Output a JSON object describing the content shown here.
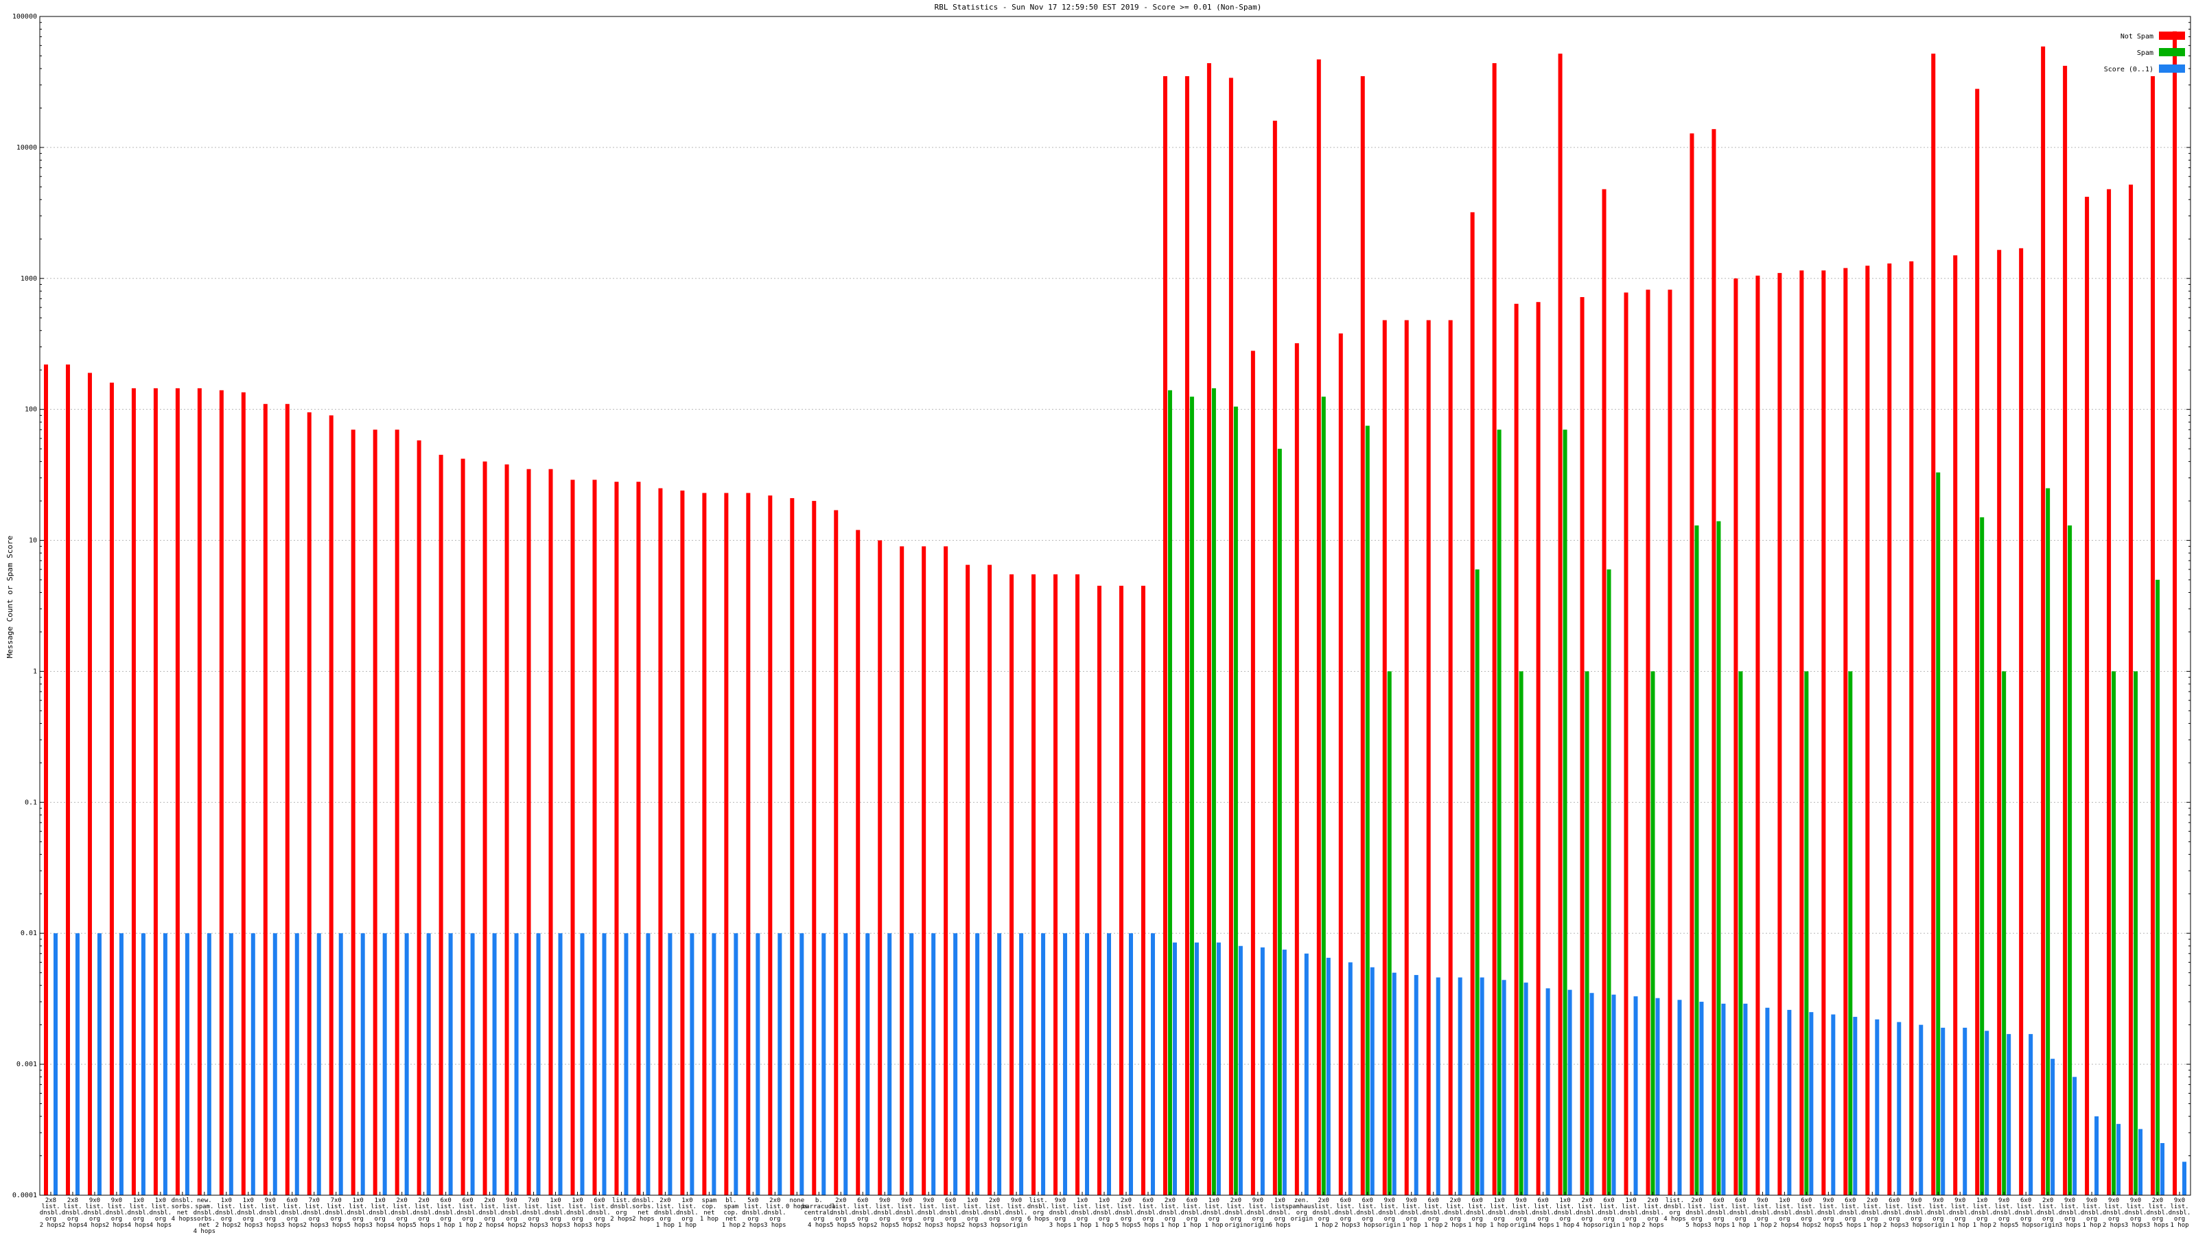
{
  "chart_data": {
    "type": "bar",
    "title": "RBL Statistics - Sun Nov 17 12:59:50 EST 2019 - Score >= 0.01 (Non-Spam)",
    "ylabel": "Message Count or Spam Score",
    "xlabel": "",
    "yscale": "log",
    "ylim": [
      0.0001,
      100000
    ],
    "yticks": [
      "100000",
      "10000",
      "1000",
      "100",
      "10",
      "1",
      "0.1",
      "0.01",
      "0.001",
      "0.0001"
    ],
    "grid": true,
    "legend_position": "top-right",
    "series": [
      {
        "name": "Not Spam",
        "color": "#ff0000"
      },
      {
        "name": "Spam",
        "color": "#00b000"
      },
      {
        "name": "Score (0..1)",
        "color": "#1e7ff0"
      }
    ],
    "not_spam": [
      220,
      220,
      190,
      160,
      145,
      145,
      145,
      145,
      140,
      135,
      110,
      110,
      95,
      90,
      70,
      70,
      70,
      58,
      45,
      42,
      40,
      38,
      35,
      35,
      29,
      29,
      28,
      28,
      25,
      24,
      23,
      23,
      23,
      22,
      21,
      20,
      17,
      12,
      10,
      9,
      9,
      9,
      6.5,
      6.5,
      5.5,
      5.5,
      5.5,
      5.5,
      4.5,
      4.5,
      4.5,
      35000,
      35000,
      44000,
      34000,
      280,
      16000,
      320,
      47000,
      380,
      35000,
      480,
      480,
      480,
      480,
      3200,
      44000,
      640,
      660,
      52000,
      720,
      4800,
      780,
      820,
      820,
      12800,
      13800,
      1000,
      1050,
      1100,
      1150,
      1150,
      1200,
      1250,
      1300,
      1350,
      52000,
      1500,
      28000,
      1650,
      1700,
      59000,
      42000,
      4200,
      4800,
      5200,
      35000,
      77000
    ],
    "spam": [
      null,
      null,
      null,
      null,
      null,
      null,
      null,
      null,
      null,
      null,
      null,
      null,
      null,
      null,
      null,
      null,
      null,
      null,
      null,
      null,
      null,
      null,
      null,
      null,
      null,
      null,
      null,
      null,
      null,
      null,
      null,
      null,
      null,
      null,
      null,
      null,
      null,
      null,
      null,
      null,
      null,
      null,
      null,
      null,
      null,
      null,
      null,
      null,
      null,
      null,
      null,
      140,
      125,
      145,
      105,
      null,
      50,
      null,
      125,
      null,
      75,
      1,
      null,
      null,
      null,
      6,
      70,
      1,
      null,
      70,
      1,
      6,
      null,
      1,
      null,
      13,
      14,
      1,
      null,
      null,
      1,
      null,
      1,
      null,
      null,
      null,
      33,
      null,
      15,
      1,
      null,
      25,
      13,
      null,
      1,
      1,
      5,
      null
    ],
    "score": [
      0.01,
      0.01,
      0.01,
      0.01,
      0.01,
      0.01,
      0.01,
      0.01,
      0.01,
      0.01,
      0.01,
      0.01,
      0.01,
      0.01,
      0.01,
      0.01,
      0.01,
      0.01,
      0.01,
      0.01,
      0.01,
      0.01,
      0.01,
      0.01,
      0.01,
      0.01,
      0.01,
      0.01,
      0.01,
      0.01,
      0.01,
      0.01,
      0.01,
      0.01,
      0.01,
      0.01,
      0.01,
      0.01,
      0.01,
      0.01,
      0.01,
      0.01,
      0.01,
      0.01,
      0.01,
      0.01,
      0.01,
      0.01,
      0.01,
      0.01,
      0.01,
      0.0085,
      0.0085,
      0.0085,
      0.008,
      0.0078,
      0.0075,
      0.007,
      0.0065,
      0.006,
      0.0055,
      0.005,
      0.0048,
      0.0046,
      0.0046,
      0.0046,
      0.0044,
      0.0042,
      0.0038,
      0.0037,
      0.0035,
      0.0034,
      0.0033,
      0.0032,
      0.0031,
      0.003,
      0.0029,
      0.0029,
      0.0027,
      0.0026,
      0.0025,
      0.0024,
      0.0023,
      0.0022,
      0.0021,
      0.002,
      0.0019,
      0.0019,
      0.0018,
      0.0017,
      0.0017,
      0.0011,
      0.0008,
      0.0004,
      0.00035,
      0.00032,
      0.00025,
      0.00018
    ],
    "categories": [
      [
        "2x8",
        "list.",
        "dnsbl.",
        "org",
        "2 hops"
      ],
      [
        "2x8",
        "list.",
        "dnsbl.",
        "org",
        "2 hops"
      ],
      [
        "9x0",
        "list.",
        "dnsbl.",
        "org",
        "4 hops"
      ],
      [
        "9x0",
        "list.",
        "dnsbl.",
        "org",
        "2 hops"
      ],
      [
        "1x0",
        "list.",
        "dnsbl.",
        "org",
        "4 hops"
      ],
      [
        "1x0",
        "list.",
        "dnsbl.",
        "org",
        "4 hops"
      ],
      [
        "dnsbl.",
        "sorbs.",
        "net",
        "4 hops"
      ],
      [
        "new.",
        "spam.",
        "dnsbl.",
        "sorbs.",
        "net",
        "4 hops"
      ],
      [
        "1x0",
        "list.",
        "dnsbl.",
        "org",
        "2 hops"
      ],
      [
        "1x0",
        "list.",
        "dnsbl.",
        "org",
        "2 hops"
      ],
      [
        "9x0",
        "list.",
        "dnsbl.",
        "org",
        "3 hops"
      ],
      [
        "6x0",
        "list.",
        "dnsbl.",
        "org",
        "3 hops"
      ],
      [
        "7x0",
        "list.",
        "dnsbl.",
        "org",
        "2 hops"
      ],
      [
        "7x0",
        "list.",
        "dnsbl.",
        "org",
        "3 hops"
      ],
      [
        "1x0",
        "list.",
        "dnsbl.",
        "org",
        "5 hops"
      ],
      [
        "1x0",
        "list.",
        "dnsbl.",
        "org",
        "3 hops"
      ],
      [
        "2x0",
        "list.",
        "dnsbl.",
        "org",
        "4 hops"
      ],
      [
        "2x0",
        "list.",
        "dnsbl.",
        "org",
        "5 hops"
      ],
      [
        "6x0",
        "list.",
        "dnsbl.",
        "org",
        "1 hop"
      ],
      [
        "6x0",
        "list.",
        "dnsbl.",
        "org",
        "1 hop"
      ],
      [
        "2x0",
        "list.",
        "dnsbl.",
        "org",
        "2 hops"
      ],
      [
        "9x0",
        "list.",
        "dnsbl.",
        "org",
        "4 hops"
      ],
      [
        "7x0",
        "list.",
        "dnsbl.",
        "org",
        "2 hops"
      ],
      [
        "1x0",
        "list.",
        "dnsbl.",
        "org",
        "3 hops"
      ],
      [
        "1x0",
        "list.",
        "dnsbl.",
        "org",
        "3 hops"
      ],
      [
        "6x0",
        "list.",
        "dnsbl.",
        "org",
        "3 hops"
      ],
      [
        "list.",
        "dnsbl.",
        "org",
        "2 hops"
      ],
      [
        "dnsbl.",
        "sorbs.",
        "net",
        "2 hops"
      ],
      [
        "2x0",
        "list.",
        "dnsbl.",
        "org",
        "1 hop"
      ],
      [
        "1x0",
        "list.",
        "dnsbl.",
        "org",
        "1 hop"
      ],
      [
        "spam",
        "cop.",
        "net",
        "1 hop"
      ],
      [
        "bl.",
        "spam",
        "cop.",
        "net",
        "1 hop"
      ],
      [
        "5x0",
        "list.",
        "dnsbl.",
        "org",
        "2 hops"
      ],
      [
        "2x0",
        "list.",
        "dnsbl.",
        "org",
        "3 hops"
      ],
      [
        "none",
        "0 hops"
      ],
      [
        "b.",
        "barracuda",
        "central.",
        "org",
        "4 hops"
      ],
      [
        "2x0",
        "list.",
        "dnsbl.",
        "org",
        "5 hops"
      ],
      [
        "6x0",
        "list.",
        "dnsbl.",
        "org",
        "5 hops"
      ],
      [
        "9x0",
        "list.",
        "dnsbl.",
        "org",
        "2 hops"
      ],
      [
        "9x0",
        "list.",
        "dnsbl.",
        "org",
        "5 hops"
      ],
      [
        "9x0",
        "list.",
        "dnsbl.",
        "org",
        "2 hops"
      ],
      [
        "6x0",
        "list.",
        "dnsbl.",
        "org",
        "3 hops"
      ],
      [
        "1x0",
        "list.",
        "dnsbl.",
        "org",
        "2 hops"
      ],
      [
        "2x0",
        "list.",
        "dnsbl.",
        "org",
        "3 hops"
      ],
      [
        "9x0",
        "list.",
        "dnsbl.",
        "org",
        "origin"
      ],
      [
        "list.",
        "dnsbl.",
        "org",
        "6 hops"
      ],
      [
        "9x0",
        "list.",
        "dnsbl.",
        "org",
        "3 hops"
      ],
      [
        "1x0",
        "list.",
        "dnsbl.",
        "org",
        "1 hop"
      ],
      [
        "1x0",
        "list.",
        "dnsbl.",
        "org",
        "1 hop"
      ],
      [
        "2x0",
        "list.",
        "dnsbl.",
        "org",
        "5 hops"
      ],
      [
        "6x0",
        "list.",
        "dnsbl.",
        "org",
        "5 hops"
      ],
      [
        "2x0",
        "list.",
        "dnsbl.",
        "org",
        "1 hop"
      ],
      [
        "6x0",
        "list.",
        "dnsbl.",
        "org",
        "1 hop"
      ],
      [
        "1x0",
        "list.",
        "dnsbl.",
        "org",
        "1 hop"
      ],
      [
        "2x0",
        "list.",
        "dnsbl.",
        "org",
        "origin"
      ],
      [
        "9x0",
        "list.",
        "dnsbl.",
        "org",
        "origin"
      ],
      [
        "1x0",
        "list.",
        "dnsbl.",
        "org",
        "6 hops"
      ],
      [
        "zen.",
        "spamhaus.",
        "org",
        "origin"
      ],
      [
        "2x0",
        "list.",
        "dnsbl.",
        "org",
        "1 hop"
      ],
      [
        "6x0",
        "list.",
        "dnsbl.",
        "org",
        "2 hops"
      ],
      [
        "6x0",
        "list.",
        "dnsbl.",
        "org",
        "3 hops"
      ],
      [
        "9x0",
        "list.",
        "dnsbl.",
        "org",
        "origin"
      ],
      [
        "9x0",
        "list.",
        "dnsbl.",
        "org",
        "1 hop"
      ],
      [
        "6x0",
        "list.",
        "dnsbl.",
        "org",
        "1 hop"
      ],
      [
        "2x0",
        "list.",
        "dnsbl.",
        "org",
        "2 hops"
      ],
      [
        "6x0",
        "list.",
        "dnsbl.",
        "org",
        "1 hop"
      ],
      [
        "1x0",
        "list.",
        "dnsbl.",
        "org",
        "1 hop"
      ],
      [
        "9x0",
        "list.",
        "dnsbl.",
        "org",
        "origin"
      ],
      [
        "6x0",
        "list.",
        "dnsbl.",
        "org",
        "4 hops"
      ],
      [
        "1x0",
        "list.",
        "dnsbl.",
        "org",
        "1 hop"
      ],
      [
        "2x0",
        "list.",
        "dnsbl.",
        "org",
        "4 hops"
      ],
      [
        "6x0",
        "list.",
        "dnsbl.",
        "org",
        "origin"
      ],
      [
        "1x0",
        "list.",
        "dnsbl.",
        "org",
        "1 hop"
      ],
      [
        "2x0",
        "list.",
        "dnsbl.",
        "org",
        "2 hops"
      ],
      [
        "list.",
        "dnsbl.",
        "org",
        "4 hops"
      ],
      [
        "2x0",
        "list.",
        "dnsbl.",
        "org",
        "5 hops"
      ],
      [
        "6x0",
        "list.",
        "dnsbl.",
        "org",
        "3 hops"
      ],
      [
        "6x0",
        "list.",
        "dnsbl.",
        "org",
        "1 hop"
      ],
      [
        "9x0",
        "list.",
        "dnsbl.",
        "org",
        "1 hop"
      ],
      [
        "1x0",
        "list.",
        "dnsbl.",
        "org",
        "2 hops"
      ],
      [
        "6x0",
        "list.",
        "dnsbl.",
        "org",
        "4 hops"
      ],
      [
        "9x0",
        "list.",
        "dnsbl.",
        "org",
        "2 hops"
      ],
      [
        "6x0",
        "list.",
        "dnsbl.",
        "org",
        "5 hops"
      ],
      [
        "2x0",
        "list.",
        "dnsbl.",
        "org",
        "1 hop"
      ],
      [
        "6x0",
        "list.",
        "dnsbl.",
        "org",
        "2 hops"
      ],
      [
        "9x0",
        "list.",
        "dnsbl.",
        "org",
        "3 hops"
      ],
      [
        "9x0",
        "list.",
        "dnsbl.",
        "org",
        "origin"
      ],
      [
        "9x0",
        "list.",
        "dnsbl.",
        "org",
        "1 hop"
      ],
      [
        "1x0",
        "list.",
        "dnsbl.",
        "org",
        "1 hop"
      ],
      [
        "9x0",
        "list.",
        "dnsbl.",
        "org",
        "2 hops"
      ],
      [
        "6x0",
        "list.",
        "dnsbl.",
        "org",
        "5 hops"
      ],
      [
        "2x0",
        "list.",
        "dnsbl.",
        "org",
        "origin"
      ],
      [
        "9x0",
        "list.",
        "dnsbl.",
        "org",
        "3 hops"
      ],
      [
        "9x0",
        "list.",
        "dnsbl.",
        "org",
        "1 hop"
      ],
      [
        "9x0",
        "list.",
        "dnsbl.",
        "org",
        "2 hops"
      ],
      [
        "9x0",
        "list.",
        "dnsbl.",
        "org",
        "3 hops"
      ],
      [
        "2x0",
        "list.",
        "dnsbl.",
        "org",
        "3 hops"
      ],
      [
        "9x0",
        "list.",
        "dnsbl.",
        "org",
        "1 hop"
      ]
    ]
  }
}
